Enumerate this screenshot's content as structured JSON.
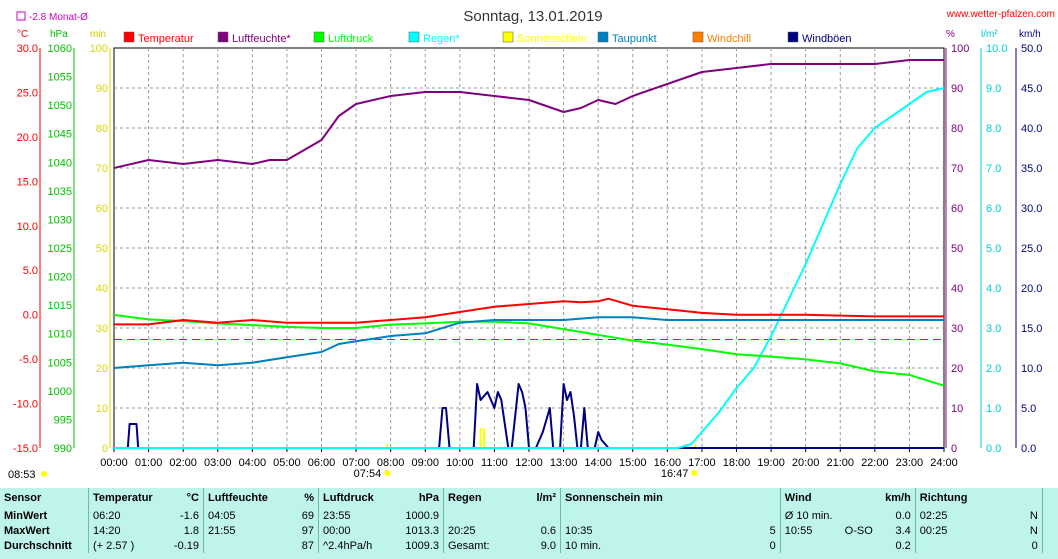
{
  "header": {
    "title": "Sonntag, 13.01.2019",
    "website": "www.wetter-pfalzen.com",
    "monthly_avg_label": "-2.8 Monat-Ø"
  },
  "axes": {
    "unit_temp": "°C",
    "unit_pressure": "hPa",
    "unit_min": "min",
    "unit_percent": "%",
    "unit_rain": "l/m²",
    "unit_wind": "km/h",
    "temp_ticks": [
      "30.0",
      "25.0",
      "20.0",
      "15.0",
      "10.0",
      "5.0",
      "0.0",
      "-5.0",
      "-10.0",
      "-15.0"
    ],
    "pressure_ticks": [
      "1060",
      "1055",
      "1050",
      "1045",
      "1040",
      "1035",
      "1030",
      "1025",
      "1020",
      "1015",
      "1010",
      "1005",
      "1000",
      "995",
      "990"
    ],
    "min_ticks": [
      "100",
      "90",
      "80",
      "70",
      "60",
      "50",
      "40",
      "30",
      "20",
      "10",
      "0"
    ],
    "percent_ticks": [
      "100",
      "90",
      "80",
      "70",
      "60",
      "50",
      "40",
      "30",
      "20",
      "10",
      "0"
    ],
    "rain_ticks": [
      "10.0",
      "9.0",
      "8.0",
      "7.0",
      "6.0",
      "5.0",
      "4.0",
      "3.0",
      "2.0",
      "1.0",
      "0.0"
    ],
    "wind_ticks": [
      "50.0",
      "45.0",
      "40.0",
      "35.0",
      "30.0",
      "25.0",
      "20.0",
      "15.0",
      "10.0",
      "5.0",
      "0.0"
    ],
    "time_ticks": [
      "00:00",
      "01:00",
      "02:00",
      "03:00",
      "04:00",
      "05:00",
      "06:00",
      "07:00",
      "08:00",
      "09:00",
      "10:00",
      "11:00",
      "12:00",
      "13:00",
      "14:00",
      "15:00",
      "16:00",
      "17:00",
      "18:00",
      "19:00",
      "20:00",
      "21:00",
      "22:00",
      "23:00",
      "24:00"
    ],
    "sunrise": "07:54",
    "sunset": "16:47",
    "sun_start_time": "08:53"
  },
  "legend": [
    {
      "label": "Temperatur",
      "color": "#ff0000"
    },
    {
      "label": "Luftfeuchte*",
      "color": "#800080"
    },
    {
      "label": "Luftdruck",
      "color": "#00ff00"
    },
    {
      "label": "Regen*",
      "color": "#00ffff"
    },
    {
      "label": "Sonnenschein",
      "color": "#ffff00"
    },
    {
      "label": "Taupunkt",
      "color": "#0080c0"
    },
    {
      "label": "Windchill",
      "color": "#ff8000"
    },
    {
      "label": "Windböen",
      "color": "#000080"
    }
  ],
  "chart_data": {
    "type": "line",
    "title": "Sonntag, 13.01.2019",
    "x_range": [
      "00:00",
      "24:00"
    ],
    "monthly_avg_temp": -2.8,
    "series": [
      {
        "name": "Temperatur",
        "unit": "°C",
        "color": "#ff0000",
        "x": [
          0,
          1,
          2,
          3,
          4,
          5,
          6,
          7,
          8,
          9,
          10,
          11,
          12,
          13,
          13.5,
          14,
          14.3,
          15,
          16,
          17,
          18,
          19,
          20,
          21,
          22,
          23,
          24
        ],
        "y": [
          -1.1,
          -1.1,
          -0.6,
          -0.9,
          -0.6,
          -0.9,
          -0.9,
          -0.9,
          -0.6,
          -0.3,
          0.3,
          0.9,
          1.2,
          1.5,
          1.4,
          1.5,
          1.8,
          1.0,
          0.6,
          0.2,
          0.0,
          0.0,
          0.0,
          -0.1,
          -0.2,
          -0.2,
          -0.2
        ]
      },
      {
        "name": "Luftfeuchte*",
        "unit": "%",
        "color": "#800080",
        "x": [
          0,
          1,
          2,
          3,
          4,
          4.5,
          5,
          6,
          6.5,
          7,
          8,
          9,
          10,
          11,
          12,
          13,
          13.5,
          14,
          14.5,
          15,
          16,
          17,
          18,
          19,
          20,
          21,
          22,
          23,
          24
        ],
        "y": [
          70,
          72,
          71,
          72,
          71,
          72,
          72,
          77,
          83,
          86,
          88,
          89,
          89,
          88,
          87,
          84,
          85,
          87,
          86,
          88,
          91,
          94,
          95,
          96,
          96,
          96,
          96,
          97,
          97
        ]
      },
      {
        "name": "Luftdruck",
        "unit": "hPa",
        "color": "#00ff00",
        "x": [
          0,
          1,
          2,
          3,
          4,
          5,
          6,
          7,
          8,
          9,
          10,
          11,
          12,
          13,
          14,
          15,
          16,
          17,
          18,
          19,
          20,
          21,
          22,
          23,
          24
        ],
        "y": [
          1013.3,
          1012.5,
          1012.2,
          1011.8,
          1011.5,
          1011.2,
          1011.0,
          1011.0,
          1011.6,
          1011.8,
          1012.1,
          1012.1,
          1011.8,
          1010.8,
          1009.8,
          1008.8,
          1008.1,
          1007.3,
          1006.4,
          1006.0,
          1005.5,
          1004.8,
          1003.4,
          1002.8,
          1000.9
        ]
      },
      {
        "name": "Regen*",
        "unit": "l/m²",
        "color": "#00ffff",
        "x": [
          0,
          16.3,
          16.7,
          17,
          17.5,
          18,
          18.5,
          19,
          19.5,
          20,
          20.5,
          21,
          21.5,
          22,
          22.5,
          23,
          23.5,
          24
        ],
        "y": [
          0,
          0,
          0.1,
          0.4,
          0.9,
          1.5,
          2.0,
          2.8,
          3.7,
          4.6,
          5.6,
          6.6,
          7.5,
          8.0,
          8.3,
          8.6,
          8.9,
          9.0
        ]
      },
      {
        "name": "Taupunkt",
        "unit": "°C",
        "color": "#0080c0",
        "x": [
          0,
          1,
          2,
          3,
          4,
          5,
          6,
          6.5,
          7,
          8,
          9,
          10,
          11,
          12,
          13,
          14,
          15,
          16,
          17,
          18,
          19,
          20,
          21,
          22,
          23,
          24
        ],
        "y": [
          -6.0,
          -5.7,
          -5.4,
          -5.7,
          -5.4,
          -4.8,
          -4.2,
          -3.3,
          -3.0,
          -2.4,
          -2.1,
          -0.9,
          -0.6,
          -0.6,
          -0.6,
          -0.3,
          -0.3,
          -0.6,
          -0.6,
          -0.6,
          -0.6,
          -0.6,
          -0.6,
          -0.6,
          -0.6,
          -0.6
        ]
      },
      {
        "name": "Windböen",
        "unit": "km/h",
        "color": "#000080",
        "x": [
          0,
          0.4,
          0.45,
          0.6,
          0.65,
          0.7,
          9.4,
          9.5,
          9.6,
          9.7,
          10.4,
          10.5,
          10.6,
          10.8,
          11,
          11.1,
          11.2,
          11.4,
          11.5,
          11.6,
          11.7,
          11.8,
          11.9,
          12,
          12.1,
          12.2,
          12.4,
          12.6,
          12.7,
          12.8,
          12.9,
          13,
          13.1,
          13.2,
          13.3,
          13.4,
          13.5,
          13.6,
          13.7,
          13.8,
          13.9,
          14.0,
          14.1,
          14.3,
          14.4,
          24
        ],
        "y": [
          0,
          0,
          3,
          3,
          3,
          0,
          0,
          5,
          5,
          0,
          0,
          8,
          6,
          7,
          5,
          7,
          6,
          0,
          0,
          4,
          8,
          7,
          5,
          0,
          0,
          0,
          2,
          5,
          0,
          0,
          0,
          8,
          6,
          7,
          4,
          0,
          0,
          5,
          0,
          0,
          0,
          2,
          1,
          0,
          0,
          0
        ]
      }
    ],
    "sunshine": {
      "name": "Sonnenschein",
      "unit": "min",
      "color": "#ffff00",
      "x": [
        7.9,
        10.6,
        10.7,
        16.8
      ],
      "y": [
        1,
        5,
        5,
        1
      ]
    }
  },
  "stats": {
    "headers": {
      "sensor": "Sensor",
      "temp": "Temperatur",
      "temp_unit": "°C",
      "hum": "Luftfeuchte",
      "hum_unit": "%",
      "press": "Luftdruck",
      "press_unit": "hPa",
      "rain": "Regen",
      "rain_unit": "l/m²",
      "sun": "Sonnenschein min",
      "wind": "Wind",
      "wind_unit": "km/h",
      "dir": "Richtung"
    },
    "rows": [
      {
        "label": "MinWert",
        "temp_time": "06:20",
        "temp_val": "-1.6",
        "hum_time": "04:05",
        "hum_val": "69",
        "press_time": "23:55",
        "press_val": "1000.9",
        "rain_time": "",
        "rain_val": "",
        "sun_time": "",
        "sun_val": "",
        "wind_time": "Ø 10 min.",
        "wind_dir": "",
        "wind_val": "0.0",
        "dir_time": "02:25",
        "dir_val": "N"
      },
      {
        "label": "MaxWert",
        "temp_time": "14:20",
        "temp_val": "1.8",
        "hum_time": "21:55",
        "hum_val": "97",
        "press_time": "00:00",
        "press_val": "1013.3",
        "rain_time": "20:25",
        "rain_val": "0.6",
        "sun_time": "10:35",
        "sun_val": "5",
        "wind_time": "10:55",
        "wind_dir": "O-SO",
        "wind_val": "3.4",
        "dir_time": "00:25",
        "dir_val": "N"
      },
      {
        "label": "Durchschnitt",
        "temp_time": "(+ 2.57 )",
        "temp_val": "-0.19",
        "hum_time": "",
        "hum_val": "87",
        "press_time": "^2.4hPa/h",
        "press_val": "1009.3",
        "rain_time": "Gesamt:",
        "rain_val": "9.0",
        "sun_time": "10 min.",
        "sun_val": "0",
        "wind_time": "",
        "wind_dir": "",
        "wind_val": "0.2",
        "dir_time": "",
        "dir_val": "0"
      }
    ]
  }
}
